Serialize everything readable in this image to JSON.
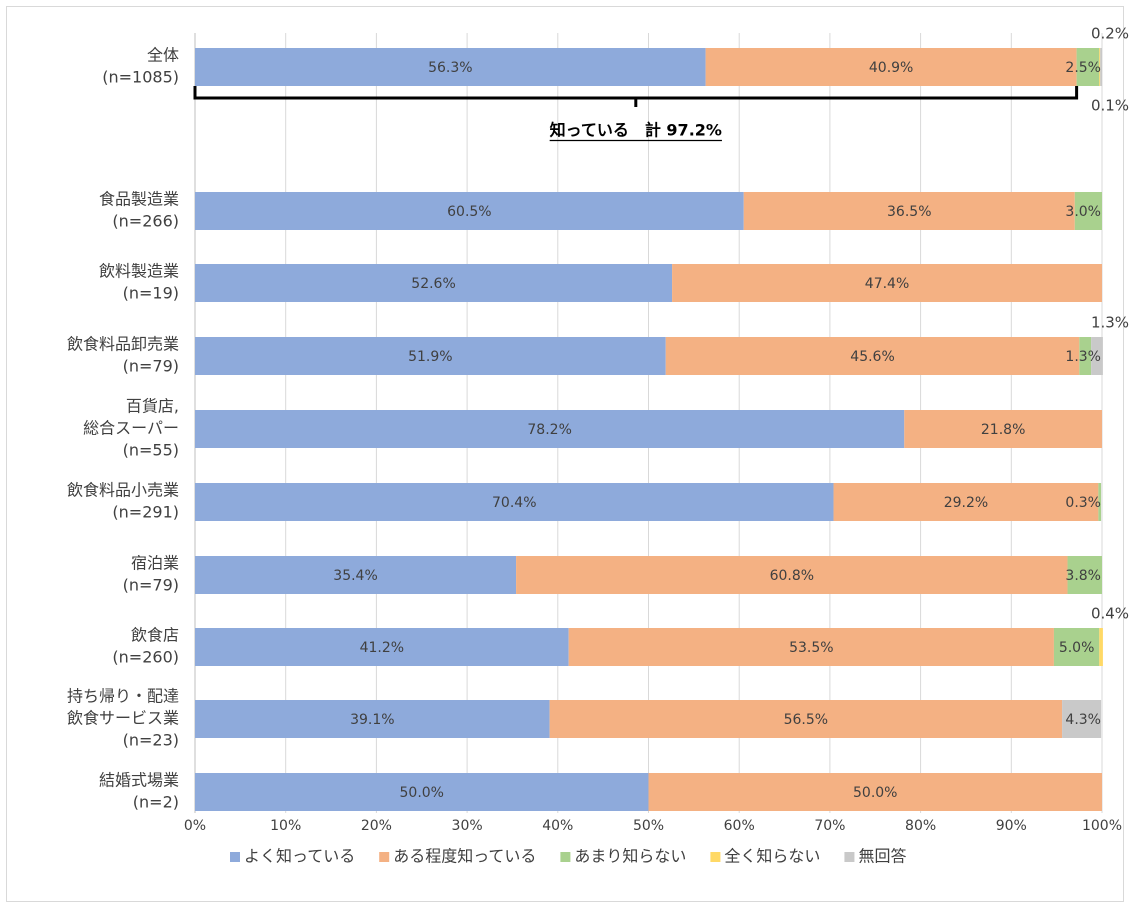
{
  "chart_data": {
    "type": "bar",
    "orientation": "horizontal",
    "stacked": true,
    "percent": true,
    "xlim": [
      0,
      100
    ],
    "xticks": [
      "0%",
      "10%",
      "20%",
      "30%",
      "40%",
      "50%",
      "60%",
      "70%",
      "80%",
      "90%",
      "100%"
    ],
    "grid": true,
    "legend_position": "bottom",
    "categories": [
      [
        "全体",
        "(n=1085)"
      ],
      [
        "食品製造業",
        "(n=266)"
      ],
      [
        "飲料製造業",
        "(n=19)"
      ],
      [
        "飲食料品卸売業",
        "(n=79)"
      ],
      [
        "百貨店,",
        "総合スーパー",
        "(n=55)"
      ],
      [
        "飲食料品小売業",
        "(n=291)"
      ],
      [
        "宿泊業",
        "(n=79)"
      ],
      [
        "飲食店",
        "(n=260)"
      ],
      [
        "持ち帰り・配達",
        "飲食サービス業",
        "(n=23)"
      ],
      [
        "結婚式場業",
        "(n=2)"
      ]
    ],
    "series": [
      {
        "name": "よく知っている",
        "color": "#8eaadb",
        "values": [
          56.3,
          60.5,
          52.6,
          51.9,
          78.2,
          70.4,
          35.4,
          41.2,
          39.1,
          50.0
        ]
      },
      {
        "name": "ある程度知っている",
        "color": "#f4b183",
        "values": [
          40.9,
          36.5,
          47.4,
          45.6,
          21.8,
          29.2,
          60.8,
          53.5,
          56.5,
          50.0
        ]
      },
      {
        "name": "あまり知らない",
        "color": "#a9d18e",
        "values": [
          2.5,
          3.0,
          0,
          1.3,
          0,
          0.3,
          3.8,
          5.0,
          0,
          0
        ]
      },
      {
        "name": "全く知らない",
        "color": "#ffd966",
        "values": [
          0.1,
          0,
          0,
          0,
          0,
          0,
          0,
          0.4,
          0,
          0
        ]
      },
      {
        "name": "無回答",
        "color": "#c9c9c9",
        "values": [
          0.2,
          0,
          0,
          1.3,
          0,
          0,
          0,
          0,
          4.3,
          0
        ]
      }
    ],
    "data_labels": [
      [
        {
          "text": "56.3%",
          "series": 0
        },
        {
          "text": "40.9%",
          "series": 1
        },
        {
          "text": "2.5%",
          "series": 2
        },
        {
          "text": "0.2%",
          "series": 4,
          "place": "above"
        },
        {
          "text": "0.1%",
          "series": 3,
          "place": "below"
        }
      ],
      [
        {
          "text": "60.5%",
          "series": 0
        },
        {
          "text": "36.5%",
          "series": 1
        },
        {
          "text": "3.0%",
          "series": 2
        }
      ],
      [
        {
          "text": "52.6%",
          "series": 0
        },
        {
          "text": "47.4%",
          "series": 1
        }
      ],
      [
        {
          "text": "51.9%",
          "series": 0
        },
        {
          "text": "45.6%",
          "series": 1
        },
        {
          "text": "1.3%",
          "series": 2
        },
        {
          "text": "1.3%",
          "series": 4,
          "place": "above"
        }
      ],
      [
        {
          "text": "78.2%",
          "series": 0
        },
        {
          "text": "21.8%",
          "series": 1
        }
      ],
      [
        {
          "text": "70.4%",
          "series": 0
        },
        {
          "text": "29.2%",
          "series": 1
        },
        {
          "text": "0.3%",
          "series": 2
        }
      ],
      [
        {
          "text": "35.4%",
          "series": 0
        },
        {
          "text": "60.8%",
          "series": 1
        },
        {
          "text": "3.8%",
          "series": 2
        }
      ],
      [
        {
          "text": "41.2%",
          "series": 0
        },
        {
          "text": "53.5%",
          "series": 1
        },
        {
          "text": "5.0%",
          "series": 2
        },
        {
          "text": "0.4%",
          "series": 3,
          "place": "above"
        }
      ],
      [
        {
          "text": "39.1%",
          "series": 0
        },
        {
          "text": "56.5%",
          "series": 1
        },
        {
          "text": "4.3%",
          "series": 4
        }
      ],
      [
        {
          "text": "50.0%",
          "series": 0
        },
        {
          "text": "50.0%",
          "series": 1
        }
      ]
    ],
    "annotation": {
      "text": "知っている　計 97.2%",
      "category_index": 0,
      "span": [
        0,
        97.2
      ]
    }
  }
}
